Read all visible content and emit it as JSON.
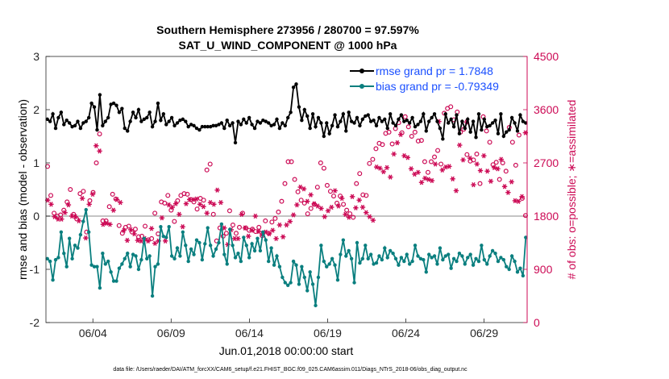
{
  "chart_data": {
    "type": "line",
    "title": "Southern Hemisphere 273956 / 280700 = 97.597%",
    "subtitle": "SAT_U_WIND_COMPONENT @ 1000 hPa",
    "xlabel": "Jun.01,2018 00:00:00 start",
    "ylabel_left": "rmse and bias (model - observation)",
    "ylabel_right": "# of obs: o=possible; ∗=assimilated",
    "footer": "data file: /Users/raeder/DAI/ATM_forcXX/CAM6_setup/f.e21.FHIST_BGC.f09_025.CAM6assim.011/Diags_NTrS_2018-06/obs_diag_output.nc",
    "x_ticks": [
      "06/04",
      "06/09",
      "06/14",
      "06/19",
      "06/24",
      "06/29"
    ],
    "x_tick_days": [
      4,
      9,
      14,
      19,
      24,
      29
    ],
    "xlim_days": [
      1,
      31.75
    ],
    "y_left_ticks": [
      "-2",
      "-1",
      "0",
      "1",
      "2",
      "3"
    ],
    "ylim_left": [
      -2,
      3
    ],
    "y_right_ticks": [
      "0",
      "900",
      "1800",
      "2700",
      "3600",
      "4500"
    ],
    "ylim_right": [
      0,
      4500
    ],
    "colors": {
      "rmse": "#000000",
      "bias": "#0a7f7f",
      "obs": "#cc0a55",
      "zero_line": "#b0b0b0",
      "legend_text": "#1a4fff"
    },
    "legend": [
      {
        "name": "rmse grand pr = 1.7848",
        "color": "#000000"
      },
      {
        "name": "bias grand pr = -0.79349",
        "color": "#0a7f7f"
      }
    ],
    "series": [
      {
        "name": "rmse",
        "values": [
          1.82,
          1.78,
          1.92,
          1.65,
          1.85,
          1.95,
          1.72,
          1.8,
          1.75,
          1.68,
          1.7,
          1.78,
          1.65,
          1.75,
          1.78,
          1.85,
          2.12,
          2.05,
          1.62,
          2.28,
          1.7,
          1.78,
          1.85,
          2.1,
          2.12,
          2.08,
          1.95,
          2.02,
          1.65,
          1.6,
          1.78,
          1.95,
          1.85,
          2.0,
          1.78,
          1.82,
          1.85,
          1.95,
          1.68,
          1.78,
          2.12,
          1.8,
          1.92,
          1.72,
          1.78,
          1.85,
          1.7,
          1.75,
          1.8,
          1.82,
          1.78,
          1.68,
          1.72,
          1.7,
          1.65,
          1.62,
          1.68,
          1.68,
          1.68,
          1.68,
          1.7,
          1.7,
          1.72,
          1.75,
          1.65,
          1.8,
          1.7,
          1.75,
          1.38,
          1.78,
          1.72,
          1.82,
          1.75,
          1.85,
          1.72,
          1.65,
          1.78,
          1.75,
          1.8,
          1.78,
          1.75,
          1.7,
          1.72,
          1.82,
          1.65,
          1.75,
          1.7,
          1.85,
          1.95,
          2.42,
          2.48,
          2.05,
          1.8,
          2.0,
          1.88,
          1.65,
          1.92,
          1.68,
          1.85,
          1.75,
          1.5,
          1.75,
          1.55,
          1.7,
          1.9,
          1.68,
          1.78,
          1.92,
          1.6,
          1.95,
          1.78,
          1.75,
          1.85,
          1.7,
          1.82,
          1.88,
          1.9,
          1.78,
          1.8,
          1.7,
          1.85,
          1.78,
          1.82,
          1.65,
          1.92,
          1.75,
          1.7,
          1.82,
          1.9,
          1.78,
          1.8,
          1.75,
          1.85,
          1.68,
          1.72,
          1.78,
          1.92,
          1.6,
          1.78,
          1.85,
          1.92,
          1.78,
          1.65,
          1.45,
          1.92,
          1.75,
          1.82,
          1.68,
          1.9,
          1.55,
          1.78,
          1.65,
          1.82,
          1.58,
          1.78,
          1.48,
          1.92,
          1.62,
          1.82,
          1.68,
          1.7,
          1.75,
          1.8,
          1.55,
          1.92,
          1.5,
          1.58,
          1.62,
          1.85,
          1.75,
          1.6,
          1.9,
          1.78,
          1.75
        ]
      },
      {
        "name": "bias",
        "values": [
          -0.8,
          -0.85,
          -1.2,
          -0.82,
          -0.78,
          -0.3,
          -0.7,
          -0.95,
          -0.42,
          -0.8,
          -0.55,
          -0.6,
          -0.35,
          -0.1,
          0.12,
          -0.3,
          -0.92,
          -0.95,
          -0.95,
          -1.35,
          -0.7,
          -0.9,
          -0.85,
          -1.05,
          -1.22,
          -1.22,
          -0.98,
          -0.9,
          -0.8,
          -0.7,
          -0.95,
          -0.72,
          -0.75,
          -1.0,
          -0.82,
          -0.42,
          -0.8,
          -0.75,
          -1.5,
          -0.95,
          -0.9,
          -0.2,
          -0.38,
          -0.4,
          -0.2,
          -0.75,
          -0.8,
          -0.6,
          -0.75,
          -0.3,
          -0.55,
          -0.85,
          -0.62,
          -0.72,
          -0.45,
          -0.5,
          -0.82,
          -0.52,
          -0.22,
          -0.55,
          -0.75,
          -0.62,
          -0.5,
          -0.15,
          -0.72,
          -0.9,
          -0.25,
          -0.55,
          -0.78,
          -0.7,
          -0.85,
          -0.4,
          -0.55,
          -0.78,
          -0.52,
          -0.65,
          -0.42,
          -0.65,
          -0.3,
          -0.45,
          -0.85,
          -0.6,
          -0.92,
          -0.75,
          -0.95,
          -1.15,
          -1.25,
          -1.3,
          -1.25,
          -0.85,
          -0.92,
          -1.28,
          -0.95,
          -1.15,
          -1.4,
          -1.05,
          -1.28,
          -1.68,
          -1.15,
          -0.55,
          -0.85,
          -0.95,
          -0.9,
          -0.8,
          -0.92,
          -1.2,
          -0.72,
          -0.45,
          -0.75,
          -0.65,
          -0.8,
          -1.25,
          -0.5,
          -0.88,
          -0.8,
          -0.55,
          -0.8,
          -0.72,
          -0.9,
          -0.88,
          -0.75,
          -0.82,
          -0.6,
          -0.78,
          -0.65,
          -0.7,
          -0.8,
          -0.92,
          -0.78,
          -0.85,
          -0.72,
          -0.9,
          -0.85,
          -0.55,
          -0.75,
          -0.8,
          -0.82,
          -1.05,
          -0.72,
          -0.78,
          -0.75,
          -0.9,
          -0.6,
          -0.82,
          -0.75,
          -0.72,
          -0.98,
          -0.8,
          -0.85,
          -0.7,
          -0.75,
          -0.9,
          -0.78,
          -0.72,
          -0.92,
          -0.8,
          -0.85,
          -0.55,
          -0.82,
          -0.9,
          -0.75,
          -0.65,
          -0.7,
          -0.85,
          -0.78,
          -0.82,
          -0.95,
          -1.0,
          -0.75,
          -0.85,
          -1.05,
          -0.98,
          -1.12,
          -0.4
        ]
      },
      {
        "name": "possible",
        "values": [
          2640,
          2150,
          1850,
          1800,
          1820,
          1900,
          2040,
          2250,
          1830,
          1750,
          2180,
          2220,
          1530,
          2060,
          2200,
          2700,
          3190,
          1720,
          1720,
          1960,
          2170,
          2090,
          1640,
          1510,
          1610,
          1630,
          1530,
          1580,
          1450,
          1460,
          1630,
          1400,
          1420,
          1850,
          1500,
          2040,
          2020,
          2150,
          1900,
          1710,
          2060,
          2150,
          2180,
          2170,
          2080,
          2040,
          1920,
          2100,
          2070,
          2580,
          2680,
          1830,
          1380,
          1600,
          1460,
          1510,
          1890,
          1650,
          1510,
          1610,
          1850,
          1600,
          1560,
          1580,
          1540,
          1610,
          1470,
          1720,
          1510,
          1700,
          1760,
          1870,
          2050,
          2350,
          2720,
          2720,
          2420,
          2210,
          2070,
          2020,
          1840,
          1930,
          2000,
          2290,
          2700,
          2610,
          2320,
          2220,
          2140,
          2020,
          2140,
          2000,
          1900,
          1840,
          1780,
          2350,
          2520,
          2160,
          2150,
          2690,
          2760,
          2940,
          3030,
          3010,
          3200,
          3220,
          3020,
          3280,
          3380,
          3210,
          3480,
          3310,
          3150,
          3220,
          3070,
          3080,
          2720,
          2540,
          2720,
          2800,
          2910,
          2680,
          3540,
          3620,
          3650,
          3430,
          3560,
          3220,
          3270,
          2840,
          2730,
          2750,
          2850,
          2350,
          3480,
          3240,
          3050,
          2670,
          2710,
          2420,
          2700,
          2560,
          3300,
          3050,
          2660,
          3170,
          2100,
          1810
        ]
      },
      {
        "name": "assimilated",
        "values": [
          2070,
          2000,
          1790,
          1750,
          1750,
          1860,
          1990,
          1800,
          1790,
          1720,
          2100,
          1430,
          2000,
          2170,
          2990,
          2900,
          1660,
          1680,
          1660,
          1900,
          2080,
          2030,
          1560,
          1390,
          1570,
          1500,
          1390,
          1380,
          1420,
          1380,
          1590,
          1340,
          1380,
          1770,
          1380,
          1990,
          1950,
          2010,
          1830,
          1620,
          2010,
          2080,
          2080,
          2090,
          2000,
          1960,
          1850,
          2030,
          2000,
          2240,
          2030,
          1600,
          1320,
          1570,
          1420,
          1420,
          1830,
          1600,
          1460,
          1560,
          1800,
          1540,
          1500,
          1530,
          1500,
          1560,
          1420,
          1650,
          1450,
          1650,
          1710,
          1820,
          1990,
          2290,
          2260,
          2050,
          2160,
          2010,
          1970,
          1930,
          1790,
          1890,
          1950,
          2230,
          1970,
          2100,
          1830,
          1780,
          2130,
          1940,
          2070,
          1950,
          1860,
          1790,
          1730,
          2630,
          2610,
          2550,
          2620,
          2460,
          2850,
          3040,
          3180,
          2820,
          2790,
          2600,
          2510,
          2540,
          2370,
          2440,
          2420,
          2400,
          2680,
          3400,
          2580,
          2630,
          2640,
          2430,
          2230,
          3000,
          2750,
          3390,
          2780,
          2330,
          2680,
          2570,
          2820,
          2560,
          2390,
          2620,
          2600,
          2760,
          2300,
          2200,
          2380,
          2060,
          2050,
          2130,
          3210
        ]
      }
    ]
  }
}
